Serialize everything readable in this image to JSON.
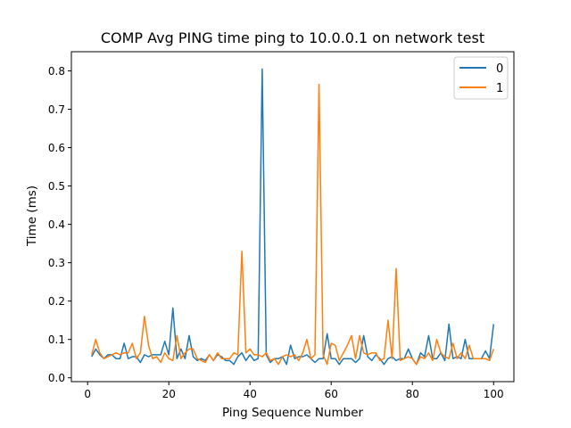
{
  "chart_data": {
    "type": "line",
    "title": "COMP Avg PING time ping to 10.0.0.1 on network test",
    "xlabel": "Ping Sequence Number",
    "ylabel": "Time (ms)",
    "xlim": [
      -4,
      105
    ],
    "ylim": [
      -0.01,
      0.85
    ],
    "xticks": [
      0,
      20,
      40,
      60,
      80,
      100
    ],
    "xtick_labels": [
      "0",
      "20",
      "40",
      "60",
      "80",
      "100"
    ],
    "yticks": [
      0.0,
      0.1,
      0.2,
      0.3,
      0.4,
      0.5,
      0.6,
      0.7,
      0.8
    ],
    "ytick_labels": [
      "0.0",
      "0.1",
      "0.2",
      "0.3",
      "0.4",
      "0.5",
      "0.6",
      "0.7",
      "0.8"
    ],
    "grid": false,
    "legend_position": "top-right",
    "x": [
      1,
      2,
      3,
      4,
      5,
      6,
      7,
      8,
      9,
      10,
      11,
      12,
      13,
      14,
      15,
      16,
      17,
      18,
      19,
      20,
      21,
      22,
      23,
      24,
      25,
      26,
      27,
      28,
      29,
      30,
      31,
      32,
      33,
      34,
      35,
      36,
      37,
      38,
      39,
      40,
      41,
      42,
      43,
      44,
      45,
      46,
      47,
      48,
      49,
      50,
      51,
      52,
      53,
      54,
      55,
      56,
      57,
      58,
      59,
      60,
      61,
      62,
      63,
      64,
      65,
      66,
      67,
      68,
      69,
      70,
      71,
      72,
      73,
      74,
      75,
      76,
      77,
      78,
      79,
      80,
      81,
      82,
      83,
      84,
      85,
      86,
      87,
      88,
      89,
      90,
      91,
      92,
      93,
      94,
      95,
      96,
      97,
      98,
      99,
      100
    ],
    "series": [
      {
        "name": "0",
        "color": "#1f77b4",
        "values": [
          0.055,
          0.075,
          0.06,
          0.05,
          0.06,
          0.06,
          0.05,
          0.05,
          0.09,
          0.05,
          0.055,
          0.055,
          0.04,
          0.06,
          0.055,
          0.06,
          0.06,
          0.06,
          0.095,
          0.06,
          0.182,
          0.05,
          0.075,
          0.05,
          0.11,
          0.055,
          0.045,
          0.05,
          0.045,
          0.06,
          0.045,
          0.06,
          0.055,
          0.045,
          0.045,
          0.035,
          0.055,
          0.065,
          0.045,
          0.06,
          0.045,
          0.05,
          0.805,
          0.06,
          0.04,
          0.05,
          0.05,
          0.055,
          0.035,
          0.085,
          0.05,
          0.055,
          0.055,
          0.06,
          0.05,
          0.04,
          0.05,
          0.05,
          0.115,
          0.05,
          0.05,
          0.035,
          0.05,
          0.05,
          0.05,
          0.04,
          0.05,
          0.11,
          0.055,
          0.045,
          0.06,
          0.05,
          0.035,
          0.05,
          0.055,
          0.045,
          0.05,
          0.05,
          0.075,
          0.05,
          0.035,
          0.065,
          0.055,
          0.11,
          0.05,
          0.05,
          0.065,
          0.045,
          0.14,
          0.05,
          0.055,
          0.05,
          0.1,
          0.05,
          0.05,
          0.05,
          0.05,
          0.07,
          0.05,
          0.14
        ]
      },
      {
        "name": "1",
        "color": "#ff7f0e",
        "values": [
          0.06,
          0.1,
          0.065,
          0.05,
          0.055,
          0.06,
          0.065,
          0.06,
          0.065,
          0.065,
          0.09,
          0.05,
          0.065,
          0.16,
          0.085,
          0.05,
          0.055,
          0.04,
          0.065,
          0.05,
          0.045,
          0.11,
          0.05,
          0.065,
          0.075,
          0.075,
          0.05,
          0.045,
          0.04,
          0.06,
          0.045,
          0.065,
          0.05,
          0.05,
          0.05,
          0.065,
          0.06,
          0.33,
          0.065,
          0.075,
          0.06,
          0.06,
          0.055,
          0.065,
          0.045,
          0.05,
          0.035,
          0.055,
          0.06,
          0.055,
          0.06,
          0.045,
          0.065,
          0.1,
          0.05,
          0.06,
          0.765,
          0.06,
          0.035,
          0.09,
          0.085,
          0.045,
          0.065,
          0.085,
          0.11,
          0.05,
          0.11,
          0.065,
          0.06,
          0.065,
          0.065,
          0.045,
          0.05,
          0.15,
          0.05,
          0.285,
          0.045,
          0.05,
          0.055,
          0.05,
          0.035,
          0.055,
          0.05,
          0.065,
          0.045,
          0.1,
          0.065,
          0.055,
          0.05,
          0.09,
          0.05,
          0.065,
          0.05,
          0.085,
          0.05,
          0.05,
          0.05,
          0.05,
          0.045,
          0.075
        ]
      }
    ]
  }
}
